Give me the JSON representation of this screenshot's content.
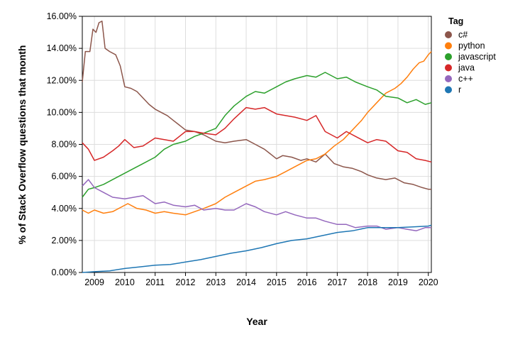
{
  "chart_data": {
    "type": "line",
    "title": "",
    "xlabel": "Year",
    "ylabel": "% of Stack Overflow questions that month",
    "xlim": [
      2008.6,
      2020.1
    ],
    "ylim": [
      0,
      16
    ],
    "x_ticks": [
      "2009",
      "2010",
      "2011",
      "2012",
      "2013",
      "2014",
      "2015",
      "2016",
      "2017",
      "2018",
      "2019",
      "2020"
    ],
    "y_ticks": [
      "0.00%",
      "2.00%",
      "4.00%",
      "6.00%",
      "8.00%",
      "10.00%",
      "12.00%",
      "14.00%",
      "16.00%"
    ],
    "grid": true,
    "legend": {
      "title": "Tag",
      "position": "right"
    },
    "series": [
      {
        "name": "c#",
        "color": "#8c564b",
        "points": [
          [
            2008.6,
            11.9
          ],
          [
            2008.7,
            13.8
          ],
          [
            2008.85,
            13.8
          ],
          [
            2008.95,
            15.2
          ],
          [
            2009.05,
            15.0
          ],
          [
            2009.15,
            15.6
          ],
          [
            2009.25,
            15.7
          ],
          [
            2009.35,
            14.0
          ],
          [
            2009.5,
            13.8
          ],
          [
            2009.7,
            13.6
          ],
          [
            2009.85,
            12.9
          ],
          [
            2010.0,
            11.6
          ],
          [
            2010.2,
            11.5
          ],
          [
            2010.4,
            11.3
          ],
          [
            2010.6,
            10.9
          ],
          [
            2010.8,
            10.5
          ],
          [
            2011.0,
            10.2
          ],
          [
            2011.2,
            10.0
          ],
          [
            2011.4,
            9.8
          ],
          [
            2011.6,
            9.5
          ],
          [
            2011.8,
            9.2
          ],
          [
            2012.0,
            8.9
          ],
          [
            2012.3,
            8.8
          ],
          [
            2012.6,
            8.6
          ],
          [
            2013.0,
            8.2
          ],
          [
            2013.3,
            8.1
          ],
          [
            2013.6,
            8.2
          ],
          [
            2014.0,
            8.3
          ],
          [
            2014.3,
            8.0
          ],
          [
            2014.6,
            7.7
          ],
          [
            2015.0,
            7.1
          ],
          [
            2015.2,
            7.3
          ],
          [
            2015.5,
            7.2
          ],
          [
            2015.8,
            7.0
          ],
          [
            2016.0,
            7.1
          ],
          [
            2016.3,
            6.9
          ],
          [
            2016.6,
            7.4
          ],
          [
            2016.9,
            6.8
          ],
          [
            2017.2,
            6.6
          ],
          [
            2017.5,
            6.5
          ],
          [
            2017.8,
            6.3
          ],
          [
            2018.0,
            6.1
          ],
          [
            2018.3,
            5.9
          ],
          [
            2018.6,
            5.8
          ],
          [
            2018.9,
            5.9
          ],
          [
            2019.2,
            5.6
          ],
          [
            2019.5,
            5.5
          ],
          [
            2019.8,
            5.3
          ],
          [
            2020.0,
            5.2
          ],
          [
            2020.1,
            5.2
          ]
        ]
      },
      {
        "name": "python",
        "color": "#ff7f0e",
        "points": [
          [
            2008.6,
            3.9
          ],
          [
            2008.8,
            3.7
          ],
          [
            2009.0,
            3.9
          ],
          [
            2009.3,
            3.7
          ],
          [
            2009.6,
            3.8
          ],
          [
            2009.9,
            4.1
          ],
          [
            2010.1,
            4.3
          ],
          [
            2010.4,
            4.0
          ],
          [
            2010.7,
            3.9
          ],
          [
            2011.0,
            3.7
          ],
          [
            2011.3,
            3.8
          ],
          [
            2011.6,
            3.7
          ],
          [
            2012.0,
            3.6
          ],
          [
            2012.3,
            3.8
          ],
          [
            2012.6,
            4.0
          ],
          [
            2013.0,
            4.3
          ],
          [
            2013.3,
            4.7
          ],
          [
            2013.6,
            5.0
          ],
          [
            2014.0,
            5.4
          ],
          [
            2014.3,
            5.7
          ],
          [
            2014.6,
            5.8
          ],
          [
            2015.0,
            6.0
          ],
          [
            2015.3,
            6.3
          ],
          [
            2015.6,
            6.6
          ],
          [
            2016.0,
            7.0
          ],
          [
            2016.3,
            7.1
          ],
          [
            2016.6,
            7.4
          ],
          [
            2016.9,
            7.9
          ],
          [
            2017.2,
            8.3
          ],
          [
            2017.5,
            8.9
          ],
          [
            2017.8,
            9.5
          ],
          [
            2018.0,
            10.0
          ],
          [
            2018.3,
            10.6
          ],
          [
            2018.6,
            11.2
          ],
          [
            2018.9,
            11.5
          ],
          [
            2019.1,
            11.8
          ],
          [
            2019.3,
            12.2
          ],
          [
            2019.5,
            12.7
          ],
          [
            2019.7,
            13.1
          ],
          [
            2019.85,
            13.2
          ],
          [
            2020.0,
            13.6
          ],
          [
            2020.1,
            13.8
          ]
        ]
      },
      {
        "name": "javascript",
        "color": "#2ca02c",
        "points": [
          [
            2008.6,
            4.7
          ],
          [
            2008.8,
            5.2
          ],
          [
            2009.0,
            5.3
          ],
          [
            2009.3,
            5.5
          ],
          [
            2009.6,
            5.8
          ],
          [
            2010.0,
            6.2
          ],
          [
            2010.3,
            6.5
          ],
          [
            2010.6,
            6.8
          ],
          [
            2011.0,
            7.2
          ],
          [
            2011.3,
            7.7
          ],
          [
            2011.6,
            8.0
          ],
          [
            2012.0,
            8.2
          ],
          [
            2012.3,
            8.5
          ],
          [
            2012.6,
            8.7
          ],
          [
            2013.0,
            9.0
          ],
          [
            2013.3,
            9.8
          ],
          [
            2013.6,
            10.4
          ],
          [
            2014.0,
            11.0
          ],
          [
            2014.3,
            11.3
          ],
          [
            2014.6,
            11.2
          ],
          [
            2015.0,
            11.6
          ],
          [
            2015.3,
            11.9
          ],
          [
            2015.6,
            12.1
          ],
          [
            2016.0,
            12.3
          ],
          [
            2016.3,
            12.2
          ],
          [
            2016.6,
            12.5
          ],
          [
            2017.0,
            12.1
          ],
          [
            2017.3,
            12.2
          ],
          [
            2017.6,
            11.9
          ],
          [
            2018.0,
            11.6
          ],
          [
            2018.3,
            11.4
          ],
          [
            2018.6,
            11.0
          ],
          [
            2019.0,
            10.9
          ],
          [
            2019.3,
            10.6
          ],
          [
            2019.6,
            10.8
          ],
          [
            2019.9,
            10.5
          ],
          [
            2020.1,
            10.6
          ]
        ]
      },
      {
        "name": "java",
        "color": "#d62728",
        "points": [
          [
            2008.6,
            8.1
          ],
          [
            2008.8,
            7.7
          ],
          [
            2009.0,
            7.0
          ],
          [
            2009.3,
            7.2
          ],
          [
            2009.6,
            7.6
          ],
          [
            2009.8,
            7.9
          ],
          [
            2010.0,
            8.3
          ],
          [
            2010.3,
            7.8
          ],
          [
            2010.6,
            7.9
          ],
          [
            2011.0,
            8.4
          ],
          [
            2011.3,
            8.3
          ],
          [
            2011.6,
            8.2
          ],
          [
            2012.0,
            8.8
          ],
          [
            2012.3,
            8.8
          ],
          [
            2012.6,
            8.7
          ],
          [
            2013.0,
            8.6
          ],
          [
            2013.3,
            9.0
          ],
          [
            2013.6,
            9.6
          ],
          [
            2014.0,
            10.3
          ],
          [
            2014.3,
            10.2
          ],
          [
            2014.6,
            10.3
          ],
          [
            2015.0,
            9.9
          ],
          [
            2015.3,
            9.8
          ],
          [
            2015.6,
            9.7
          ],
          [
            2016.0,
            9.5
          ],
          [
            2016.3,
            9.8
          ],
          [
            2016.6,
            8.8
          ],
          [
            2017.0,
            8.4
          ],
          [
            2017.3,
            8.8
          ],
          [
            2017.6,
            8.5
          ],
          [
            2018.0,
            8.1
          ],
          [
            2018.3,
            8.3
          ],
          [
            2018.6,
            8.2
          ],
          [
            2019.0,
            7.6
          ],
          [
            2019.3,
            7.5
          ],
          [
            2019.6,
            7.1
          ],
          [
            2019.9,
            7.0
          ],
          [
            2020.1,
            6.9
          ]
        ]
      },
      {
        "name": "c++",
        "color": "#9467bd",
        "points": [
          [
            2008.6,
            5.4
          ],
          [
            2008.8,
            5.8
          ],
          [
            2009.0,
            5.3
          ],
          [
            2009.3,
            5.0
          ],
          [
            2009.6,
            4.7
          ],
          [
            2010.0,
            4.6
          ],
          [
            2010.3,
            4.7
          ],
          [
            2010.6,
            4.8
          ],
          [
            2011.0,
            4.3
          ],
          [
            2011.3,
            4.4
          ],
          [
            2011.6,
            4.2
          ],
          [
            2012.0,
            4.1
          ],
          [
            2012.3,
            4.2
          ],
          [
            2012.6,
            3.9
          ],
          [
            2013.0,
            4.0
          ],
          [
            2013.3,
            3.9
          ],
          [
            2013.6,
            3.9
          ],
          [
            2014.0,
            4.3
          ],
          [
            2014.3,
            4.1
          ],
          [
            2014.6,
            3.8
          ],
          [
            2015.0,
            3.6
          ],
          [
            2015.3,
            3.8
          ],
          [
            2015.6,
            3.6
          ],
          [
            2016.0,
            3.4
          ],
          [
            2016.3,
            3.4
          ],
          [
            2016.6,
            3.2
          ],
          [
            2017.0,
            3.0
          ],
          [
            2017.3,
            3.0
          ],
          [
            2017.6,
            2.8
          ],
          [
            2018.0,
            2.9
          ],
          [
            2018.3,
            2.9
          ],
          [
            2018.6,
            2.7
          ],
          [
            2019.0,
            2.8
          ],
          [
            2019.3,
            2.7
          ],
          [
            2019.6,
            2.6
          ],
          [
            2019.9,
            2.8
          ],
          [
            2020.1,
            2.8
          ]
        ]
      },
      {
        "name": "r",
        "color": "#1f77b4",
        "points": [
          [
            2008.6,
            0.0
          ],
          [
            2009.0,
            0.05
          ],
          [
            2009.5,
            0.1
          ],
          [
            2010.0,
            0.25
          ],
          [
            2010.5,
            0.35
          ],
          [
            2011.0,
            0.45
          ],
          [
            2011.5,
            0.5
          ],
          [
            2012.0,
            0.65
          ],
          [
            2012.5,
            0.8
          ],
          [
            2013.0,
            1.0
          ],
          [
            2013.5,
            1.2
          ],
          [
            2014.0,
            1.35
          ],
          [
            2014.5,
            1.55
          ],
          [
            2015.0,
            1.8
          ],
          [
            2015.5,
            2.0
          ],
          [
            2016.0,
            2.1
          ],
          [
            2016.5,
            2.3
          ],
          [
            2017.0,
            2.5
          ],
          [
            2017.5,
            2.6
          ],
          [
            2018.0,
            2.8
          ],
          [
            2018.5,
            2.8
          ],
          [
            2019.0,
            2.8
          ],
          [
            2019.5,
            2.85
          ],
          [
            2020.0,
            2.9
          ],
          [
            2020.1,
            2.95
          ]
        ]
      }
    ]
  }
}
